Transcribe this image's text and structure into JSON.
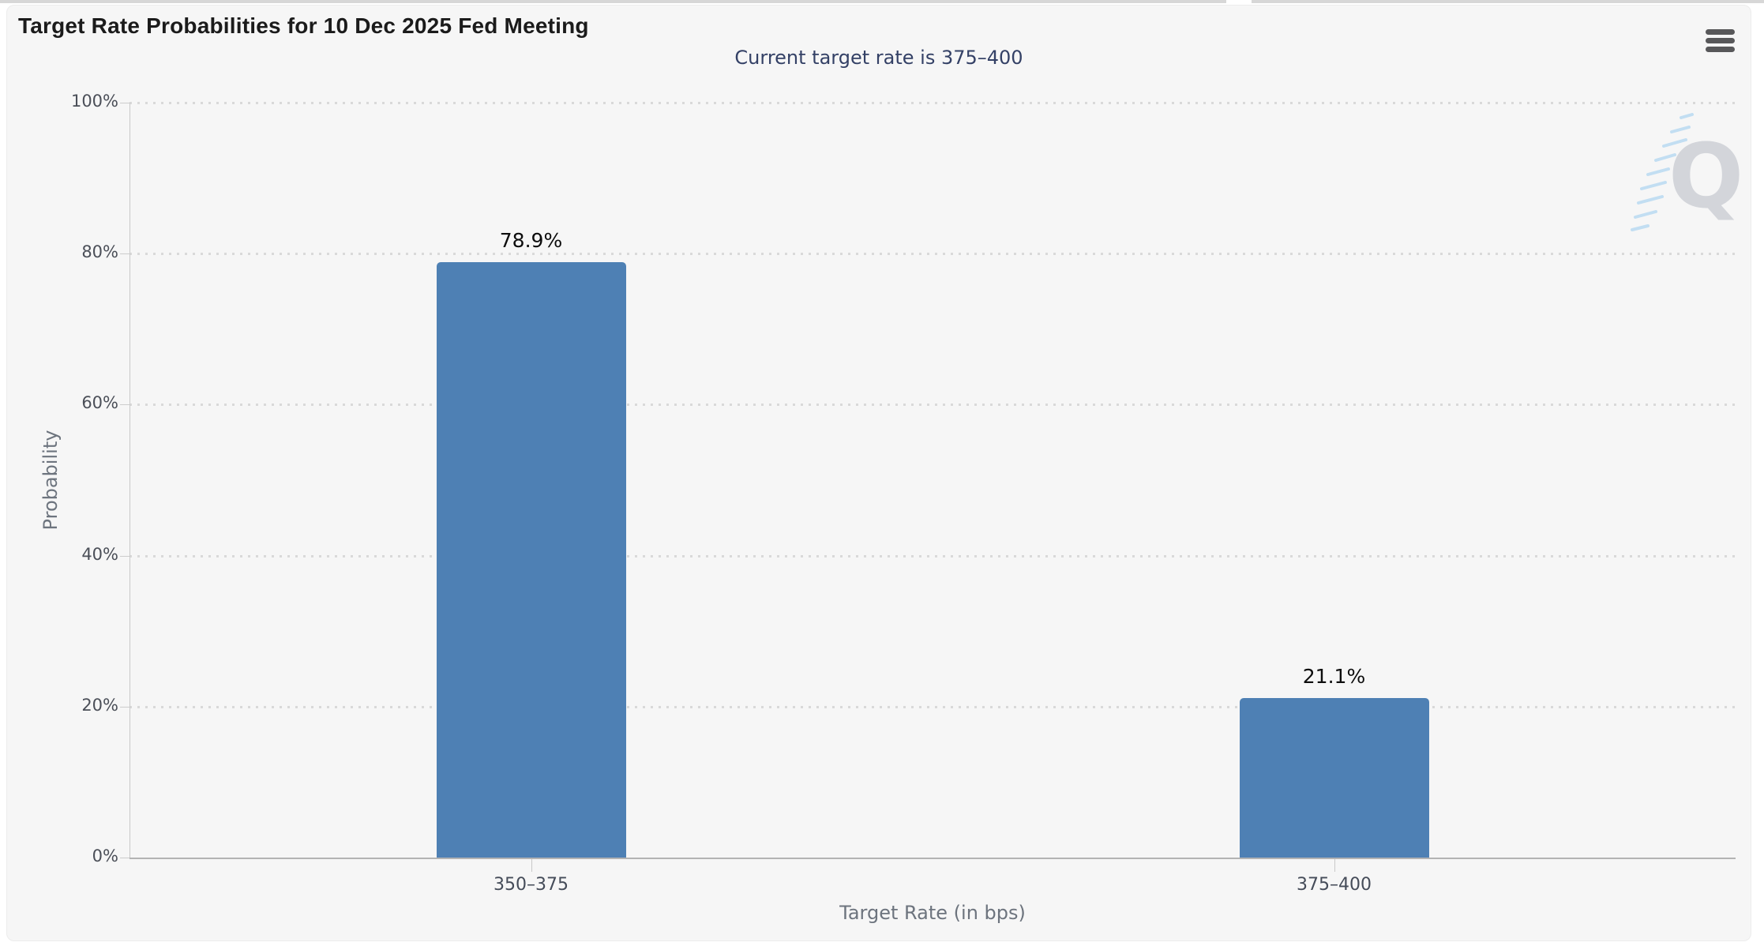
{
  "header": {
    "menu_icon": "hamburger-icon"
  },
  "watermark": {
    "letter": "Q"
  },
  "chart_data": {
    "type": "bar",
    "title": "Target Rate Probabilities for 10 Dec 2025 Fed Meeting",
    "subtitle": "Current target rate is 375–400",
    "categories": [
      "350–375",
      "375–400"
    ],
    "values": [
      78.9,
      21.1
    ],
    "data_labels": [
      "78.9%",
      "21.1%"
    ],
    "xlabel": "Target Rate (in bps)",
    "ylabel": "Probability",
    "ylim": [
      0,
      100
    ],
    "yticks": [
      "100%",
      "80%",
      "60%",
      "40%",
      "20%",
      "0%"
    ],
    "grid": "dotted",
    "legend": "none",
    "bar_color": "#4e80b4"
  },
  "colors": {
    "card_background": "#f6f6f6",
    "page_background": "#ffffff",
    "bar": "#4e80b4",
    "subtitle_text": "#344166",
    "axis_title_text": "#6d747e",
    "tick_text": "#4b4f58",
    "grid_dot": "#d9d9d9"
  }
}
